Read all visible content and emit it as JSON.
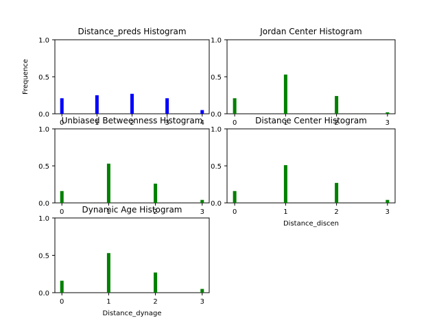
{
  "chart_data": [
    {
      "type": "bar",
      "title": "Distance_preds Histogram",
      "xlabel": "",
      "ylabel": "Frequence",
      "bar_color": "#0000ff",
      "x": [
        0,
        1,
        2,
        3,
        4
      ],
      "values": [
        0.21,
        0.25,
        0.27,
        0.21,
        0.05
      ],
      "xlim": [
        -0.2,
        4.2
      ],
      "ylim": [
        0,
        1
      ],
      "xticks": [
        "0",
        "1",
        "2",
        "3",
        "4"
      ],
      "yticks": [
        "0.0",
        "0.5",
        "1.0"
      ],
      "grid": false
    },
    {
      "type": "bar",
      "title": "Jordan Center Histogram",
      "xlabel": "",
      "ylabel": "",
      "bar_color": "#008000",
      "x": [
        0,
        1,
        2,
        3
      ],
      "values": [
        0.21,
        0.53,
        0.24,
        0.02
      ],
      "xlim": [
        -0.15,
        3.15
      ],
      "ylim": [
        0,
        1
      ],
      "xticks": [
        "0",
        "1",
        "2",
        "3"
      ],
      "yticks": [
        "0.0",
        "0.5",
        "1.0"
      ],
      "grid": false
    },
    {
      "type": "bar",
      "title": "Unbiased Betweenness Histogram",
      "xlabel": "",
      "ylabel": "",
      "bar_color": "#008000",
      "x": [
        0,
        1,
        2,
        3
      ],
      "values": [
        0.16,
        0.53,
        0.26,
        0.04
      ],
      "xlim": [
        -0.15,
        3.15
      ],
      "ylim": [
        0,
        1
      ],
      "xticks": [
        "0",
        "1",
        "2",
        "3"
      ],
      "yticks": [
        "0.0",
        "0.5",
        "1.0"
      ],
      "grid": false
    },
    {
      "type": "bar",
      "title": "Distance Center Histogram",
      "xlabel": "Distance_discen",
      "ylabel": "",
      "bar_color": "#008000",
      "x": [
        0,
        1,
        2,
        3
      ],
      "values": [
        0.16,
        0.51,
        0.27,
        0.04
      ],
      "xlim": [
        -0.15,
        3.15
      ],
      "ylim": [
        0,
        1
      ],
      "xticks": [
        "0",
        "1",
        "2",
        "3"
      ],
      "yticks": [
        "0.0",
        "0.5",
        "1.0"
      ],
      "grid": false
    },
    {
      "type": "bar",
      "title": "Dynamic Age Histogram",
      "xlabel": "Distance_dynage",
      "ylabel": "",
      "bar_color": "#008000",
      "x": [
        0,
        1,
        2,
        3
      ],
      "values": [
        0.16,
        0.53,
        0.27,
        0.05
      ],
      "xlim": [
        -0.15,
        3.15
      ],
      "ylim": [
        0,
        1
      ],
      "xticks": [
        "0",
        "1",
        "2",
        "3"
      ],
      "yticks": [
        "0.0",
        "0.5",
        "1.0"
      ],
      "grid": false
    }
  ]
}
